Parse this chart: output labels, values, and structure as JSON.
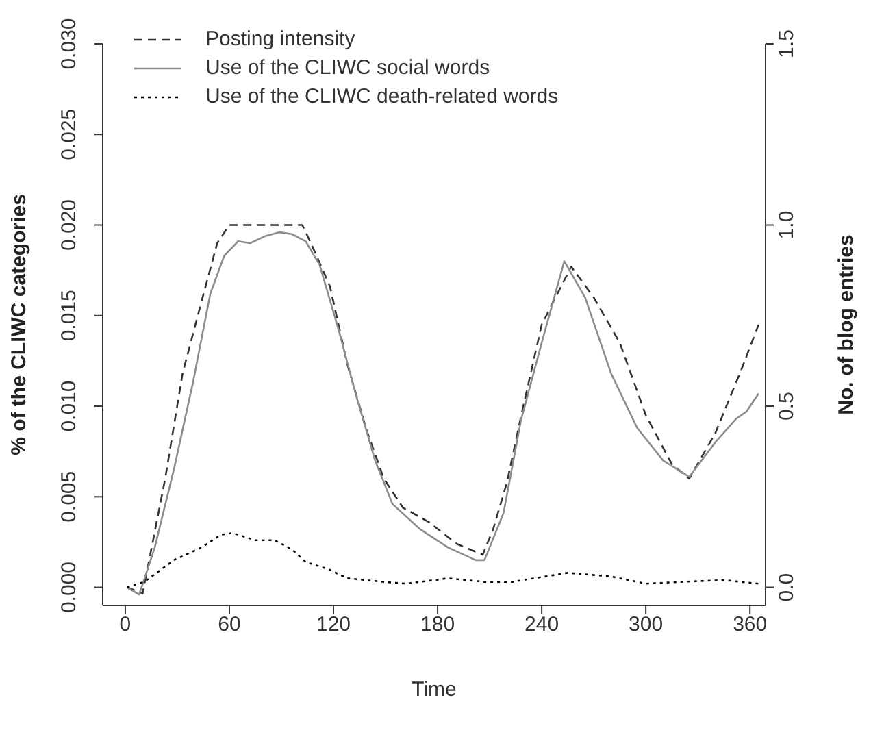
{
  "chart_data": {
    "type": "line",
    "xlabel": "Time",
    "ylabel": "% of the CLIWC categories",
    "y2label": "No. of blog entries",
    "xlim": [
      -13,
      369
    ],
    "xticks": [
      0,
      60,
      120,
      180,
      240,
      300,
      360
    ],
    "ylim": [
      -0.001,
      0.03
    ],
    "yticks": [
      {
        "value": 0,
        "label": "0.000"
      },
      {
        "value": 0.005,
        "label": "0.005"
      },
      {
        "value": 0.01,
        "label": "0.010"
      },
      {
        "value": 0.015,
        "label": "0.015"
      },
      {
        "value": 0.02,
        "label": "0.020"
      },
      {
        "value": 0.025,
        "label": "0.025"
      },
      {
        "value": 0.03,
        "label": "0.030"
      }
    ],
    "y2lim": [
      -0.05,
      1.5
    ],
    "y2ticks": [
      {
        "value": 0,
        "label": "0.0"
      },
      0.5,
      {
        "value": 1,
        "label": "1.0"
      },
      1.5
    ],
    "legend": "top left",
    "marker": "none",
    "series": [
      {
        "name": "Posting intensity",
        "color": "#333333",
        "line_style": "dashed",
        "axis": "y2",
        "x": [
          1,
          10,
          23,
          33,
          44,
          53,
          60,
          102,
          107,
          118,
          128,
          139,
          149,
          160,
          175,
          191,
          206,
          212,
          220,
          228,
          240,
          257,
          270,
          285,
          300,
          315,
          325,
          340,
          355,
          365
        ],
        "values": [
          0,
          -0.017,
          0.3,
          0.59,
          0.79,
          0.95,
          1.0,
          1.0,
          0.95,
          0.83,
          0.615,
          0.435,
          0.3,
          0.22,
          0.18,
          0.12,
          0.09,
          0.16,
          0.29,
          0.47,
          0.725,
          0.885,
          0.8,
          0.675,
          0.475,
          0.34,
          0.3,
          0.425,
          0.6,
          0.725
        ]
      },
      {
        "name": "Use of the CLIWC social words",
        "color": "#8c8c8c",
        "line_style": "solid",
        "x": [
          1,
          8,
          17,
          28,
          39,
          49,
          57,
          65,
          72,
          81,
          89,
          96,
          104,
          112,
          123,
          133,
          144,
          154,
          170,
          186,
          202,
          207,
          218,
          228,
          240,
          253,
          265,
          280,
          295,
          310,
          325,
          340,
          352,
          358,
          365
        ],
        "values": [
          0,
          -0.0004,
          0.0022,
          0.0065,
          0.0113,
          0.0162,
          0.0183,
          0.0191,
          0.019,
          0.0194,
          0.0196,
          0.0195,
          0.0191,
          0.0178,
          0.0142,
          0.0106,
          0.007,
          0.0046,
          0.0032,
          0.0022,
          0.0015,
          0.0015,
          0.0041,
          0.0092,
          0.0135,
          0.018,
          0.016,
          0.0118,
          0.0088,
          0.007,
          0.0061,
          0.008,
          0.0093,
          0.0097,
          0.0107
        ]
      },
      {
        "name": "Use of the CLIWC death-related words",
        "color": "#000000",
        "line_style": "dotted",
        "x": [
          1,
          11,
          28,
          44,
          55,
          62,
          75,
          86,
          96,
          104,
          117,
          128,
          149,
          162,
          186,
          207,
          223,
          255,
          280,
          300,
          320,
          345,
          365
        ],
        "values": [
          0,
          0.0003,
          0.0015,
          0.0022,
          0.0029,
          0.003,
          0.0026,
          0.0026,
          0.0021,
          0.0014,
          0.001,
          0.0005,
          0.0003,
          0.0002,
          0.0005,
          0.0003,
          0.0003,
          0.0008,
          0.0006,
          0.0002,
          0.0003,
          0.0004,
          0.0002
        ]
      }
    ]
  }
}
